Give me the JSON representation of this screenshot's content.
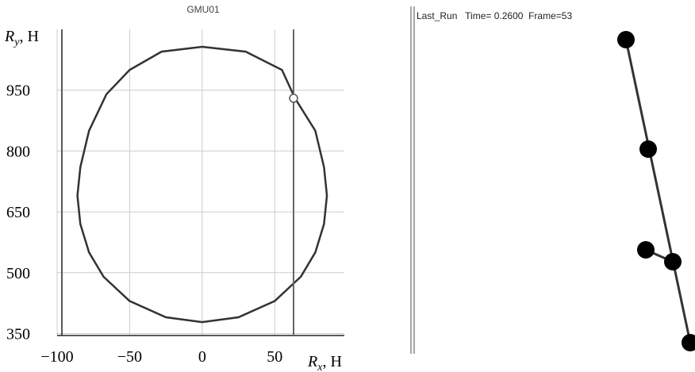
{
  "chart_data": {
    "type": "line",
    "title": "GMU01",
    "x_label": {
      "symbol": "R",
      "subscript": "x",
      "unit": ", H"
    },
    "y_label": {
      "symbol": "R",
      "subscript": "y",
      "unit": ", H"
    },
    "x": [
      0,
      30,
      55,
      64,
      78,
      84,
      86,
      84,
      78,
      68,
      50,
      25,
      0,
      -25,
      -50,
      -68,
      -78,
      -84,
      -86,
      -84,
      -78,
      -66,
      -50,
      -28,
      0
    ],
    "series": [
      {
        "color": "#333333",
        "values": [
          1057,
          1045,
          1000,
          930,
          850,
          760,
          690,
          620,
          550,
          490,
          430,
          390,
          378,
          390,
          430,
          490,
          550,
          620,
          690,
          760,
          850,
          940,
          1000,
          1045,
          1057
        ]
      }
    ],
    "vline": 63,
    "marker": {
      "x": 63,
      "y": 930
    },
    "xlim": [
      -100,
      98
    ],
    "ylim": [
      345,
      1100
    ],
    "xticks": [
      {
        "value": -100,
        "label": "−100"
      },
      {
        "value": -50,
        "label": "−50"
      },
      0,
      50
    ],
    "yticks": [
      350,
      500,
      650,
      800,
      950
    ],
    "grid": true
  },
  "viewer": {
    "header": "Last_Run   Time= 0.2600  Frame=53"
  }
}
